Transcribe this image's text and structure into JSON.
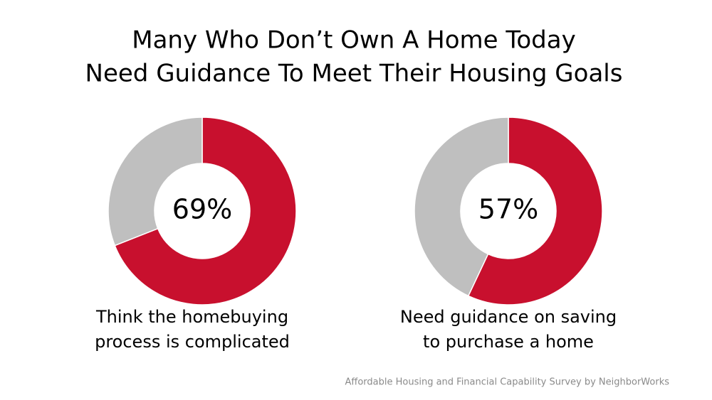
{
  "title": [
    "Many Who Don’t Own A Home Today",
    "Need Guidance To Meet Their Housing Goals"
  ],
  "chart_data": [
    {
      "type": "donut",
      "values": [
        69,
        31
      ],
      "value_labels": [
        "69%",
        null
      ],
      "colors": [
        "#c8102e",
        "#bfbfbf"
      ],
      "caption": [
        "Think the homebuying",
        "process is complicated"
      ]
    },
    {
      "type": "donut",
      "values": [
        57,
        43
      ],
      "value_labels": [
        "57%",
        null
      ],
      "colors": [
        "#c8102e",
        "#bfbfbf"
      ],
      "caption": [
        "Need guidance on saving",
        "to purchase a home"
      ]
    }
  ],
  "source": "Affordable Housing and Financial Capability Survey by NeighborWorks"
}
